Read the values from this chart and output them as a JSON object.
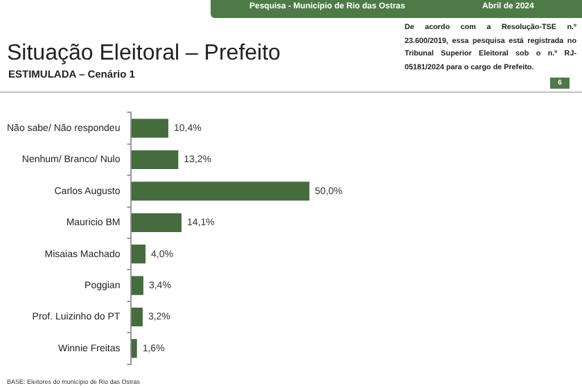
{
  "chart_data": {
    "type": "bar",
    "orientation": "horizontal",
    "title": "Situação Eleitoral – Prefeito",
    "subtitle": "ESTIMULADA – Cenário 1",
    "categories": [
      "Não sabe/ Não respondeu",
      "Nenhum/ Branco/ Nulo",
      "Carlos Augusto",
      "Mauricio BM",
      "Misaias Machado",
      "Poggian",
      "Prof. Luizinho do PT",
      "Winnie Freitas"
    ],
    "values": [
      10.4,
      13.2,
      50.0,
      14.1,
      4.0,
      3.4,
      3.2,
      1.6
    ],
    "value_labels": [
      "10,4%",
      "13,2%",
      "50,0%",
      "14,1%",
      "4,0%",
      "3,4%",
      "3,2%",
      "1,6%"
    ],
    "color": "#456b3e",
    "tick_labels": "y",
    "annotations": [
      "Pesquisa - Município de Rio das Ostras",
      "Abril de 2024",
      "De acordo com a Resolução-TSE n.º 23.600/2019, essa pesquisa está registrada no Tribunal Superior Eleitoral sob o n.º RJ-05181/2024 para o cargo de Prefeito.",
      "6",
      "BASE: Eleitores do município de Rio das Ostras"
    ]
  }
}
